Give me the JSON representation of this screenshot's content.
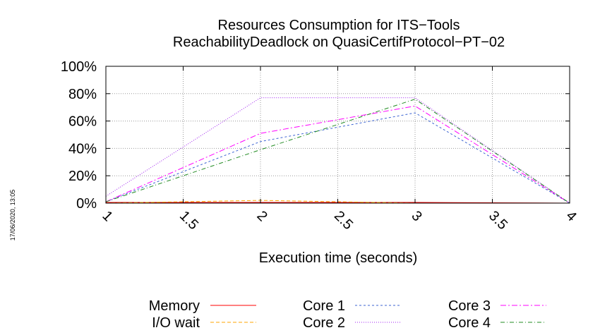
{
  "chart_data": {
    "type": "line",
    "title": [
      "Resources Consumption for ITS−Tools",
      "ReachabilityDeadlock on QuasiCertifProtocol−PT−02"
    ],
    "xlabel": "Execution time (seconds)",
    "ylabel": "",
    "xlim": [
      1,
      4
    ],
    "ylim": [
      0,
      100
    ],
    "x_ticks": [
      1,
      1.5,
      2,
      2.5,
      3,
      3.5,
      4
    ],
    "x_tick_labels": [
      "1",
      "1.5",
      "2",
      "2.5",
      "3",
      "3.5",
      "4"
    ],
    "y_ticks": [
      0,
      20,
      40,
      60,
      80,
      100
    ],
    "y_tick_labels": [
      "0%",
      "20%",
      "40%",
      "60%",
      "80%",
      "100%"
    ],
    "grid": true,
    "legend_position": "bottom",
    "series": [
      {
        "name": "Memory",
        "color": "#ff0000",
        "dash": "",
        "x": [
          1,
          2,
          3,
          4
        ],
        "values": [
          0.5,
          0.5,
          0.5,
          0
        ]
      },
      {
        "name": "I/O wait",
        "color": "#ffa500",
        "dash": "5,3",
        "x": [
          1,
          2,
          3,
          4
        ],
        "values": [
          0,
          2,
          0,
          0
        ]
      },
      {
        "name": "Core 1",
        "color": "#3c64d2",
        "dash": "3,3",
        "x": [
          1,
          2,
          3,
          4
        ],
        "values": [
          1,
          45,
          66,
          0
        ]
      },
      {
        "name": "Core 2",
        "color": "#a020f0",
        "dash": "1,2",
        "x": [
          1,
          2,
          3,
          4
        ],
        "values": [
          5,
          77,
          77,
          0
        ]
      },
      {
        "name": "Core 3",
        "color": "#ff00ff",
        "dash": "8,3,2,3",
        "x": [
          1,
          2,
          3,
          4
        ],
        "values": [
          1,
          51,
          71,
          0
        ]
      },
      {
        "name": "Core 4",
        "color": "#228b22",
        "dash": "6,3,1,3",
        "x": [
          1,
          2,
          3,
          4
        ],
        "values": [
          1,
          39,
          76,
          0
        ]
      }
    ]
  },
  "timestamp": "17/06/2020, 13:05"
}
